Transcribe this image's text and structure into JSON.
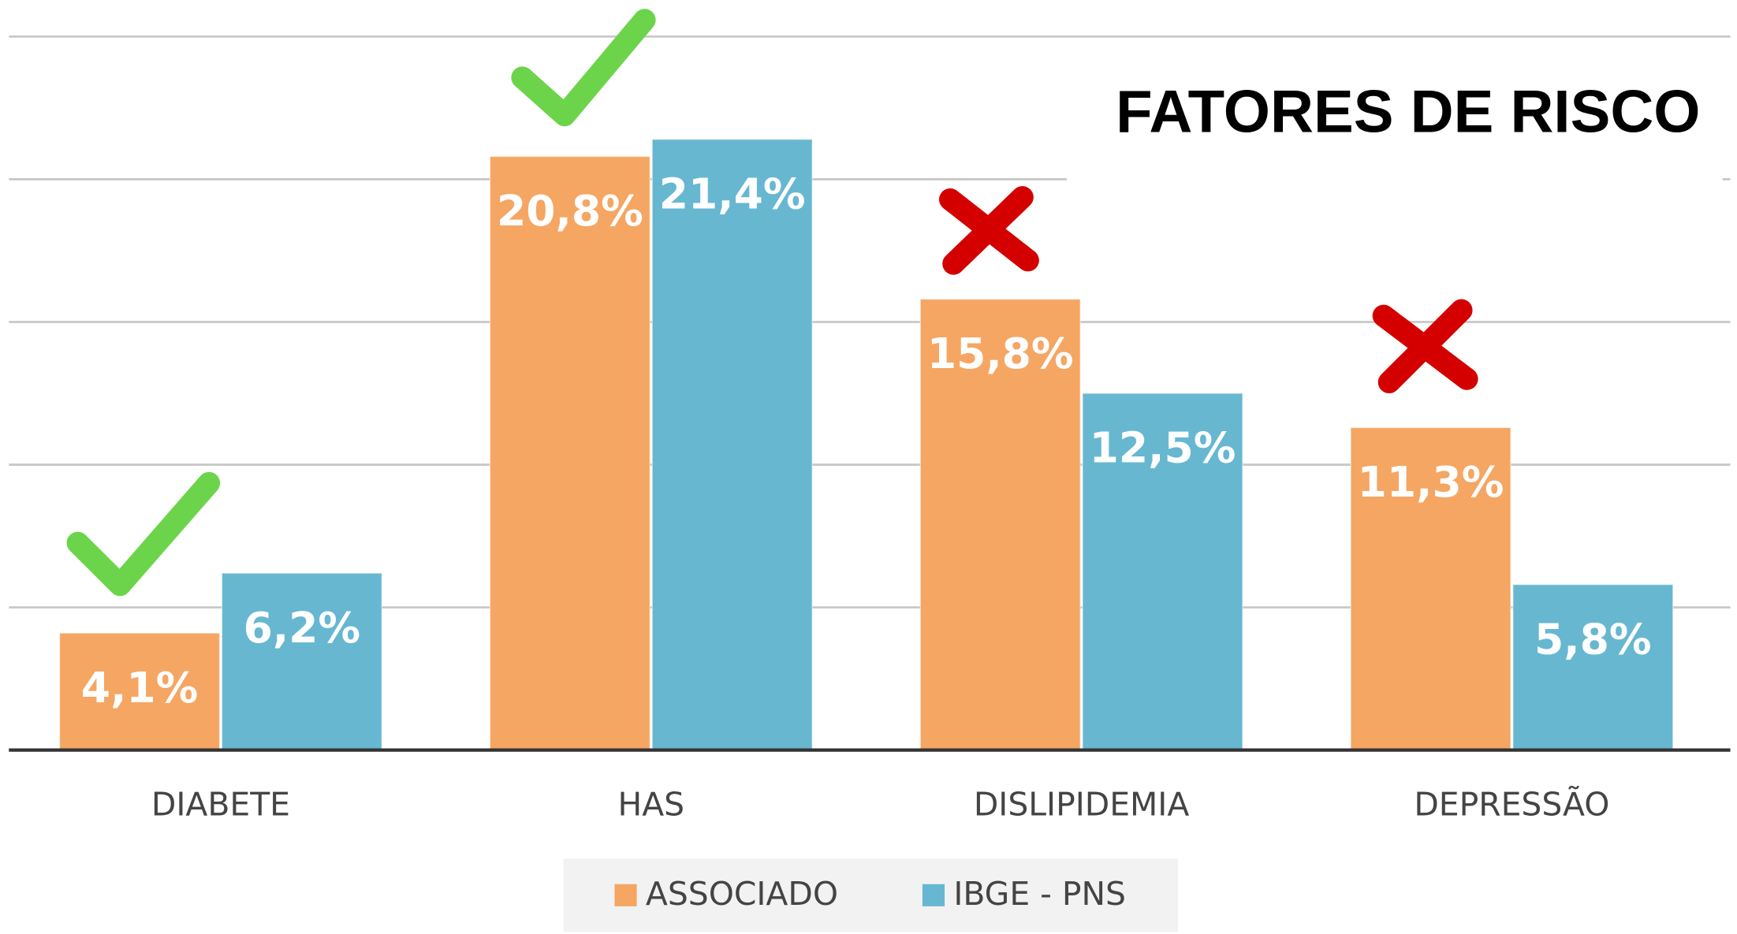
{
  "chart_data": {
    "type": "bar",
    "title": "FATORES DE RISCO",
    "categories": [
      "DIABETE",
      "HAS",
      "DISLIPIDEMIA",
      "DEPRESSÃO"
    ],
    "series": [
      {
        "name": "ASSOCIADO",
        "color": "#f5a663",
        "values": [
          4.1,
          20.8,
          15.8,
          11.3
        ],
        "value_labels": [
          "4,1%",
          "20,8%",
          "15,8%",
          "11,3%"
        ]
      },
      {
        "name": "IBGE - PNS",
        "color": "#67b7d1",
        "values": [
          6.2,
          21.4,
          12.5,
          5.8
        ],
        "value_labels": [
          "6,2%",
          "21,4%",
          "12,5%",
          "5,8%"
        ]
      }
    ],
    "ylim": [
      0,
      25
    ],
    "yticks": [
      0,
      5,
      10,
      15,
      20,
      25
    ],
    "grid": true
  }
}
